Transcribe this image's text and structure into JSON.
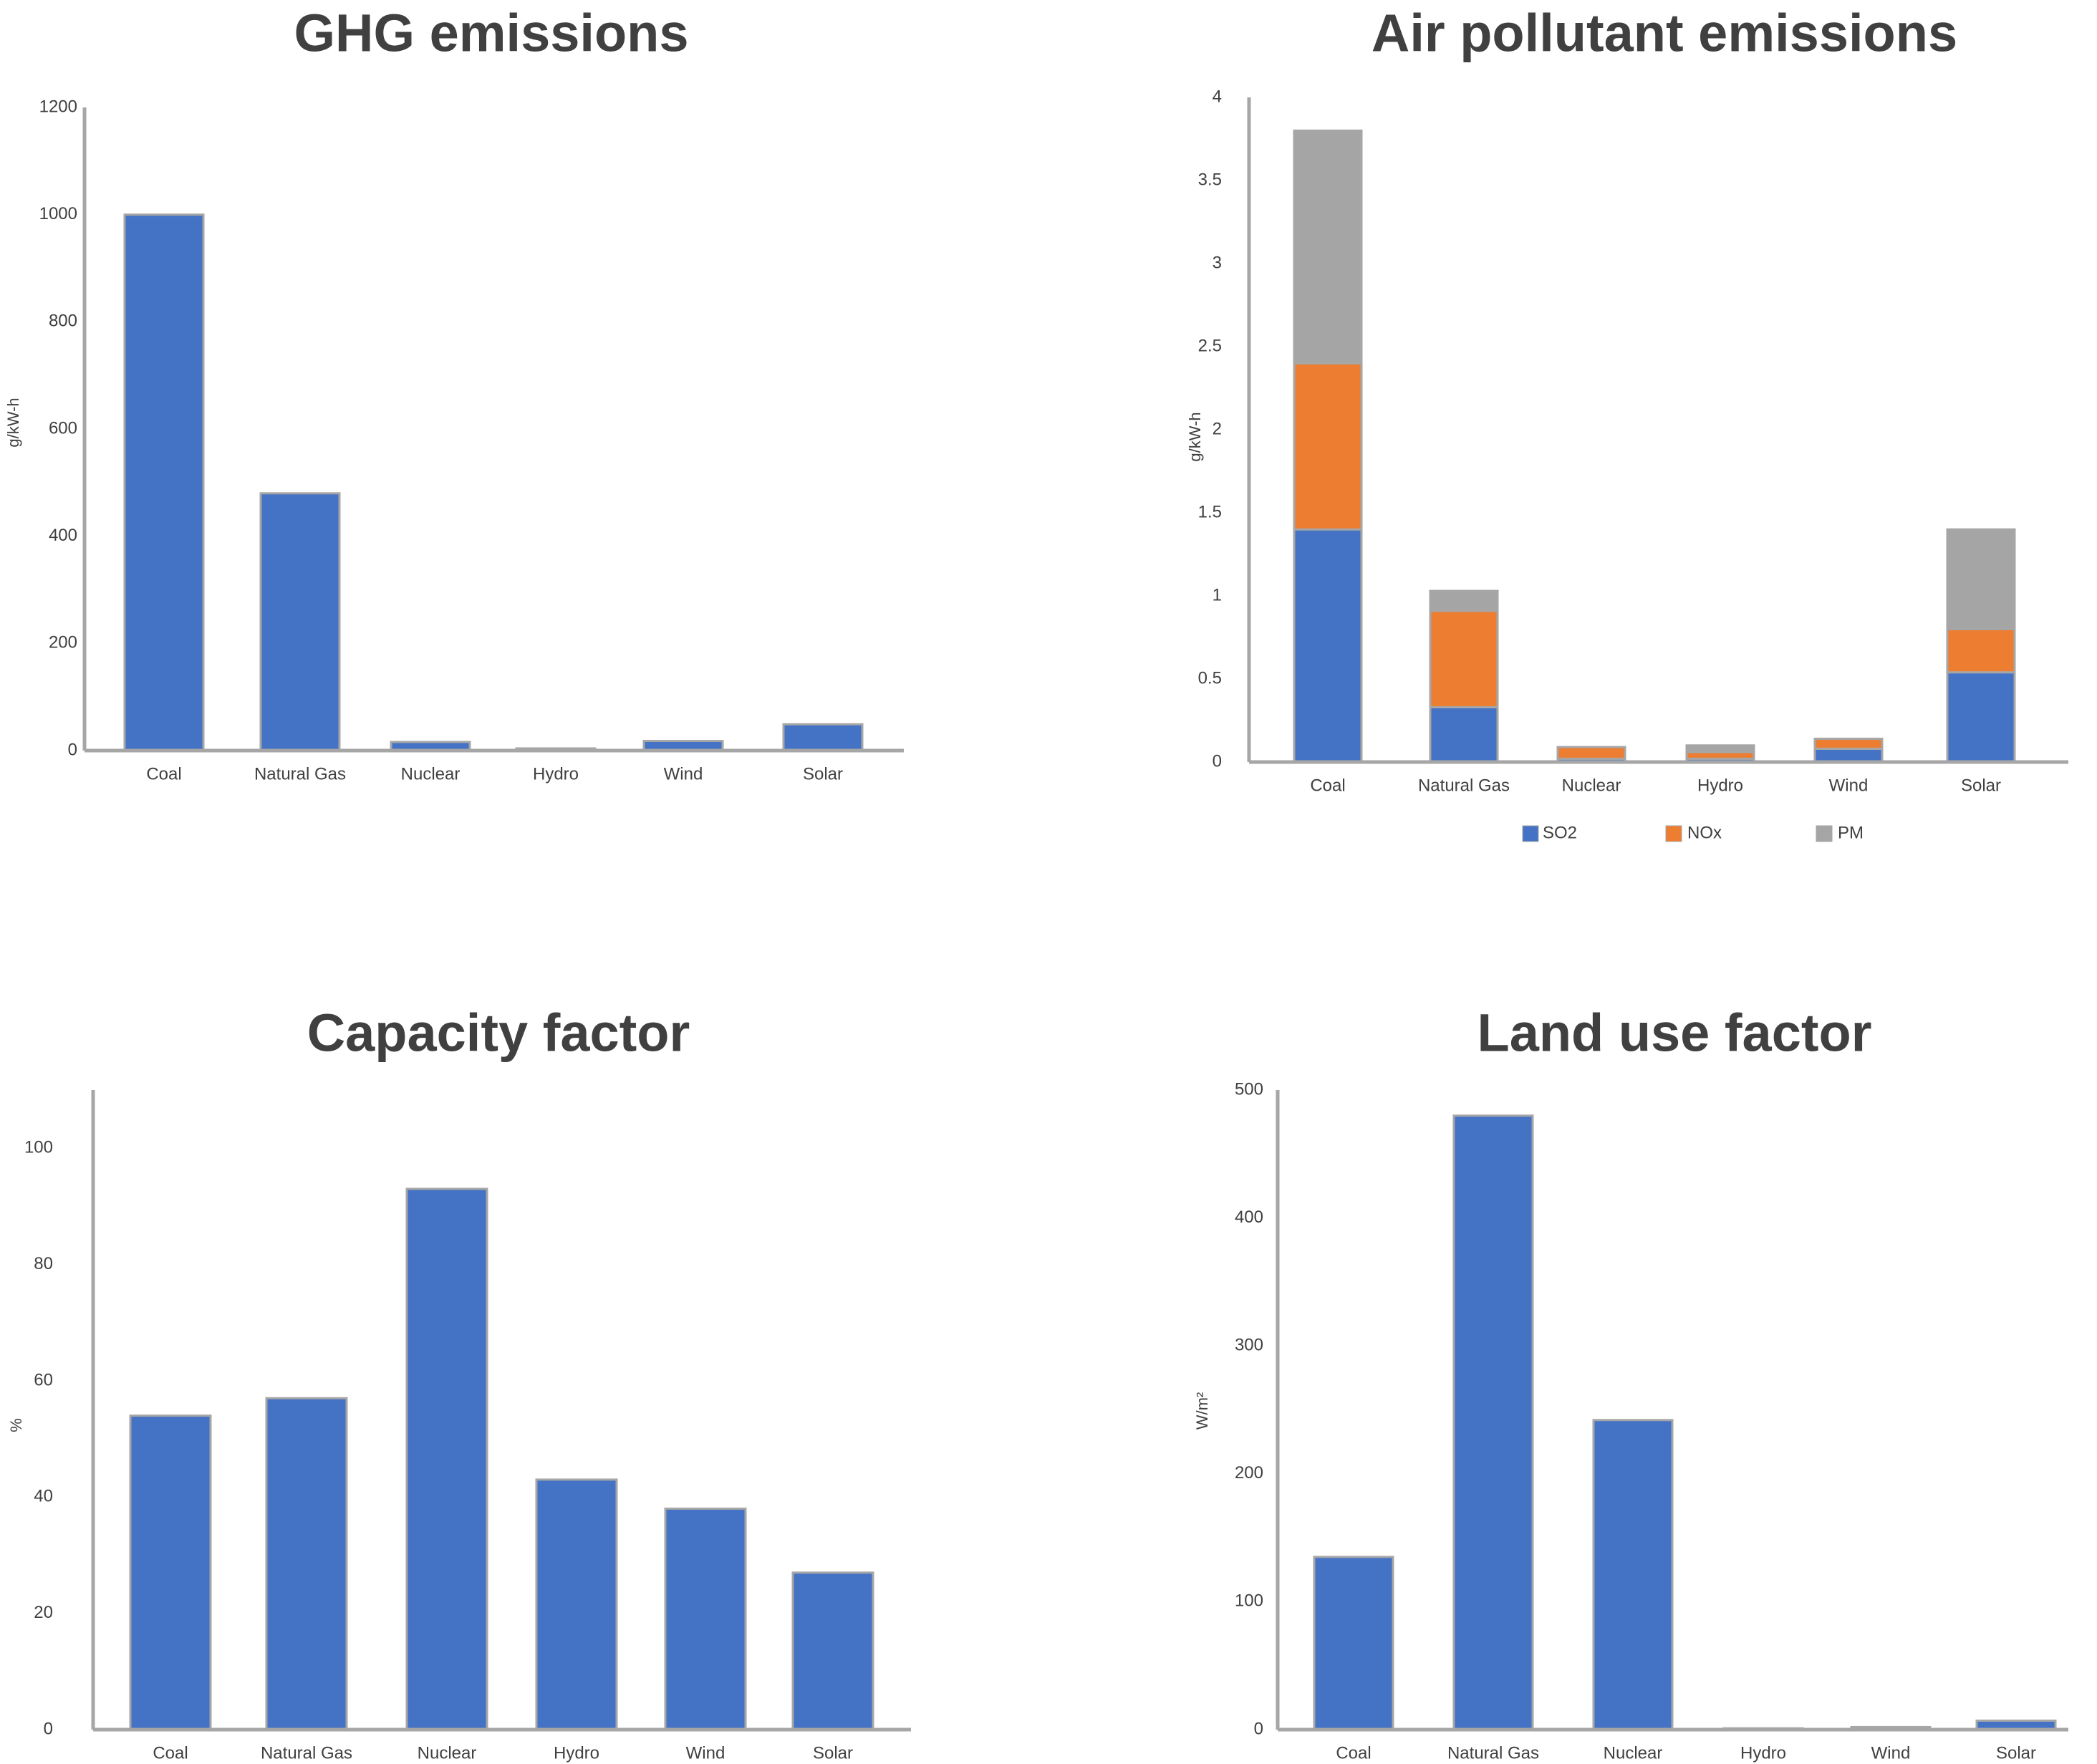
{
  "chart_data": [
    {
      "id": "ghg",
      "type": "bar",
      "title": "GHG emissions",
      "ylabel": "g/kW-h",
      "xlabel": "",
      "categories": [
        "Coal",
        "Natural Gas",
        "Nuclear",
        "Hydro",
        "Wind",
        "Solar"
      ],
      "values": [
        1000,
        480,
        16,
        4,
        18,
        49
      ],
      "ylim": [
        0,
        1200
      ],
      "yticks": [
        "0",
        "200",
        "400",
        "600",
        "800",
        "1000",
        "1200"
      ],
      "grid": false,
      "colors": [
        "#4472c4"
      ]
    },
    {
      "id": "air",
      "type": "bar",
      "stacked": true,
      "title": "Air pollutant emissions",
      "ylabel": "g/kW-h",
      "xlabel": "",
      "categories": [
        "Coal",
        "Natural Gas",
        "Nuclear",
        "Hydro",
        "Wind",
        "Solar"
      ],
      "series": [
        {
          "name": "SO2",
          "values": [
            1.4,
            0.33,
            0.02,
            0.02,
            0.08,
            0.54
          ]
        },
        {
          "name": "NOx",
          "values": [
            1.0,
            0.58,
            0.07,
            0.04,
            0.06,
            0.26
          ]
        },
        {
          "name": "PM",
          "values": [
            1.4,
            0.12,
            0.0,
            0.04,
            0.0,
            0.6
          ]
        }
      ],
      "ylim": [
        0,
        4
      ],
      "yticks": [
        "0",
        "0.5",
        "1",
        "1.5",
        "2",
        "2.5",
        "3",
        "3.5",
        "4"
      ],
      "legend_position": "bottom",
      "grid": false,
      "colors": [
        "#4472c4",
        "#ed7d31",
        "#a5a5a5"
      ]
    },
    {
      "id": "capacity",
      "type": "bar",
      "title": "Capacity factor",
      "ylabel": "%",
      "xlabel": "",
      "categories": [
        "Coal",
        "Natural Gas",
        "Nuclear",
        "Hydro",
        "Wind",
        "Solar"
      ],
      "values": [
        54,
        57,
        93,
        43,
        38,
        27
      ],
      "ylim": [
        0,
        110
      ],
      "yticks": [
        "0",
        "20",
        "40",
        "60",
        "80",
        "100"
      ],
      "grid": false,
      "colors": [
        "#4472c4"
      ]
    },
    {
      "id": "land",
      "type": "bar",
      "title": "Land use factor",
      "ylabel": "W/m²",
      "xlabel": "",
      "categories": [
        "Coal",
        "Natural Gas",
        "Nuclear",
        "Hydro",
        "Wind",
        "Solar"
      ],
      "values": [
        135,
        480,
        242,
        1,
        2,
        7
      ],
      "ylim": [
        0,
        500
      ],
      "yticks": [
        "0",
        "100",
        "200",
        "300",
        "400",
        "500"
      ],
      "grid": false,
      "colors": [
        "#4472c4"
      ]
    }
  ]
}
